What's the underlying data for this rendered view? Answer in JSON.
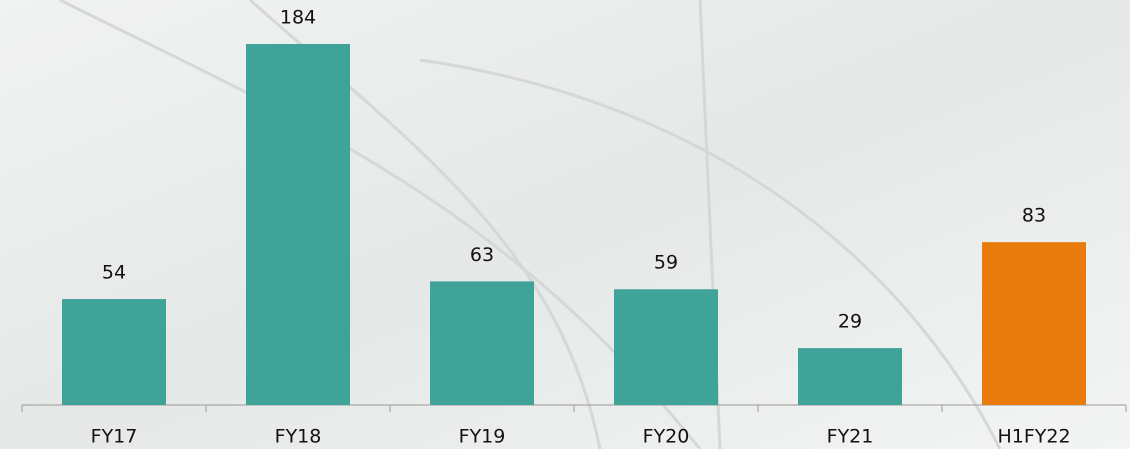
{
  "chart_data": {
    "type": "bar",
    "categories": [
      "FY17",
      "FY18",
      "FY19",
      "FY20",
      "FY21",
      "H1FY22"
    ],
    "values": [
      54,
      184,
      63,
      59,
      29,
      83
    ],
    "colors": [
      "#3fa39a",
      "#3fa39a",
      "#3fa39a",
      "#3fa39a",
      "#3fa39a",
      "#e97a0c"
    ]
  }
}
